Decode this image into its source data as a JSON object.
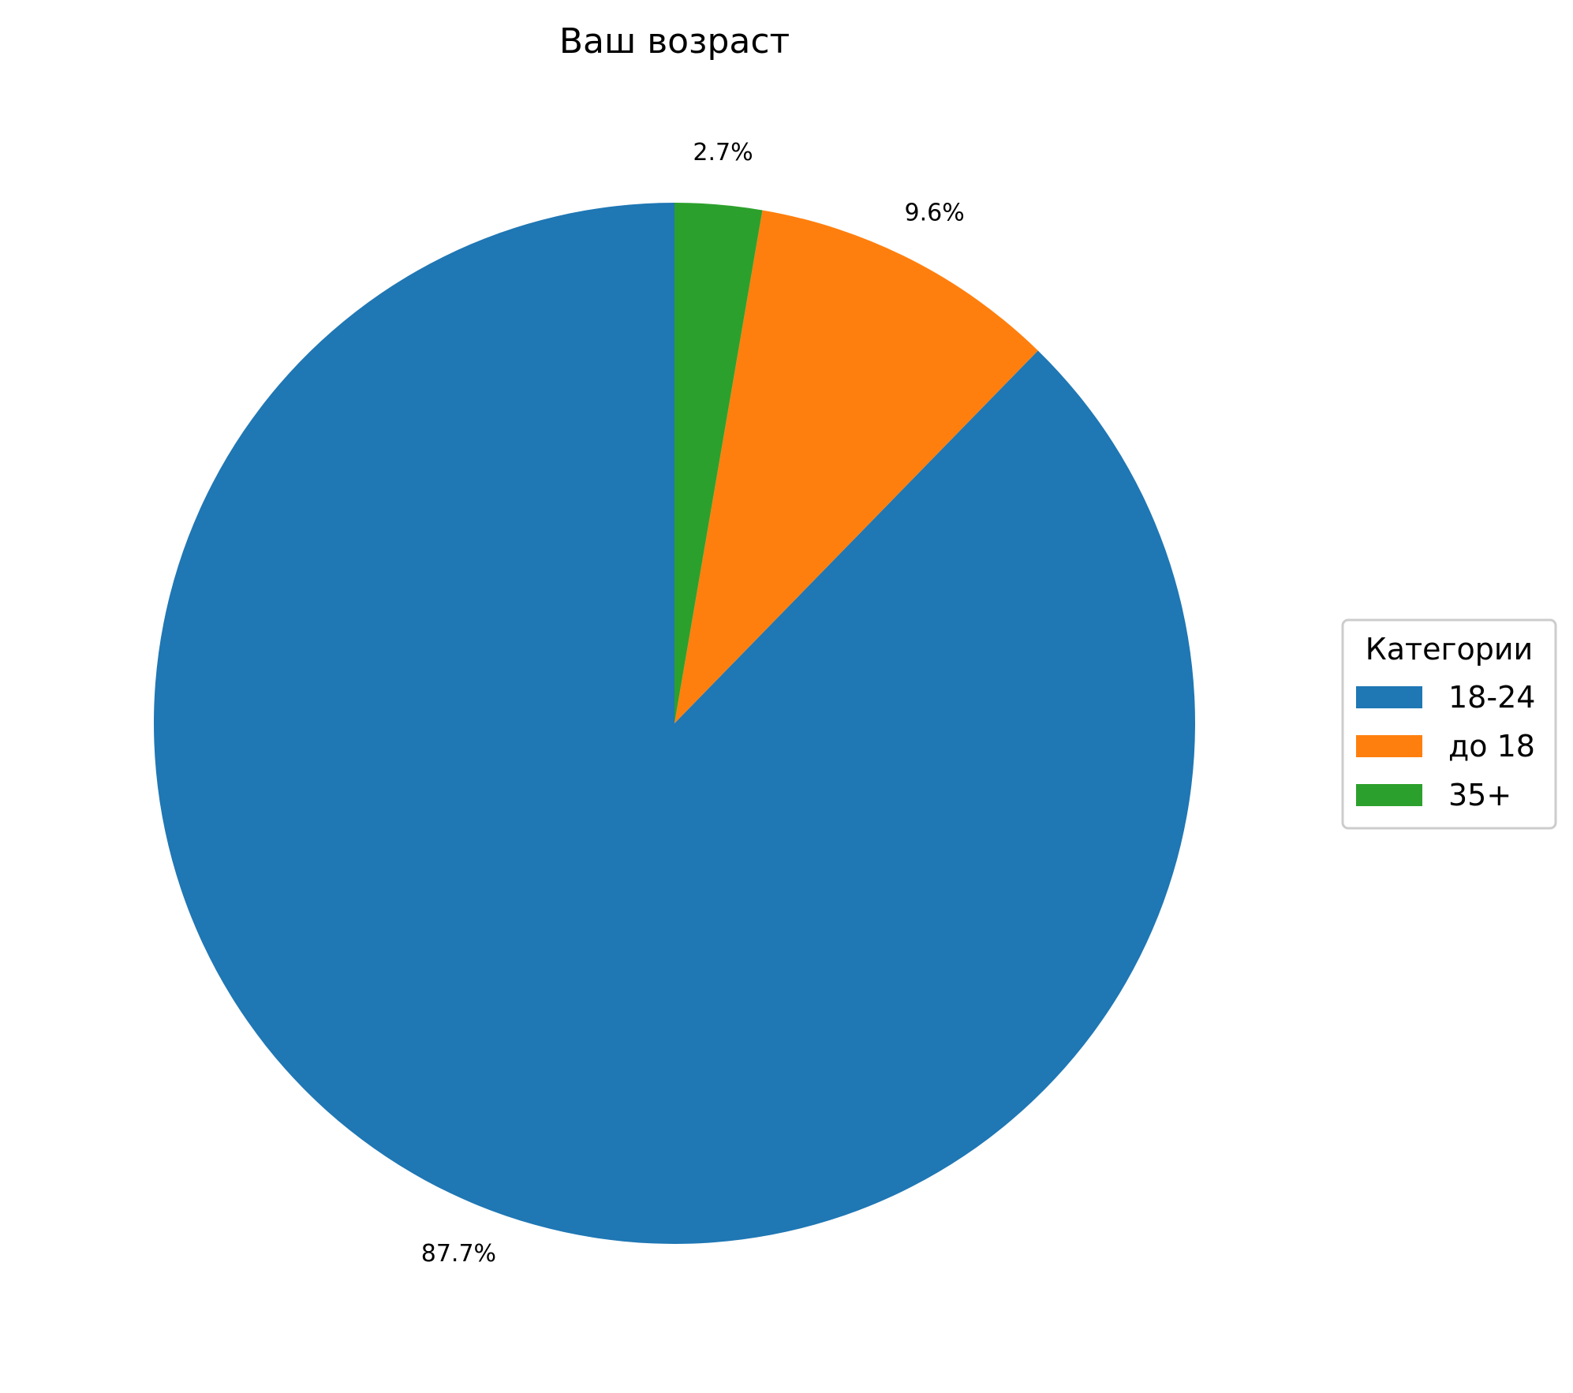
{
  "chart_data": {
    "type": "pie",
    "title": "Ваш возраст",
    "start_angle": 90,
    "direction": "counterclockwise",
    "slices": [
      {
        "label": "18-24",
        "value": 87.7,
        "pct_label": "87.7%",
        "color": "#1f77b4"
      },
      {
        "label": "до 18",
        "value": 9.6,
        "pct_label": "9.6%",
        "color": "#ff7f0e"
      },
      {
        "label": "35+",
        "value": 2.7,
        "pct_label": "2.7%",
        "color": "#2ca02c"
      }
    ],
    "legend": {
      "title": "Категории",
      "placement": "center-right"
    }
  }
}
